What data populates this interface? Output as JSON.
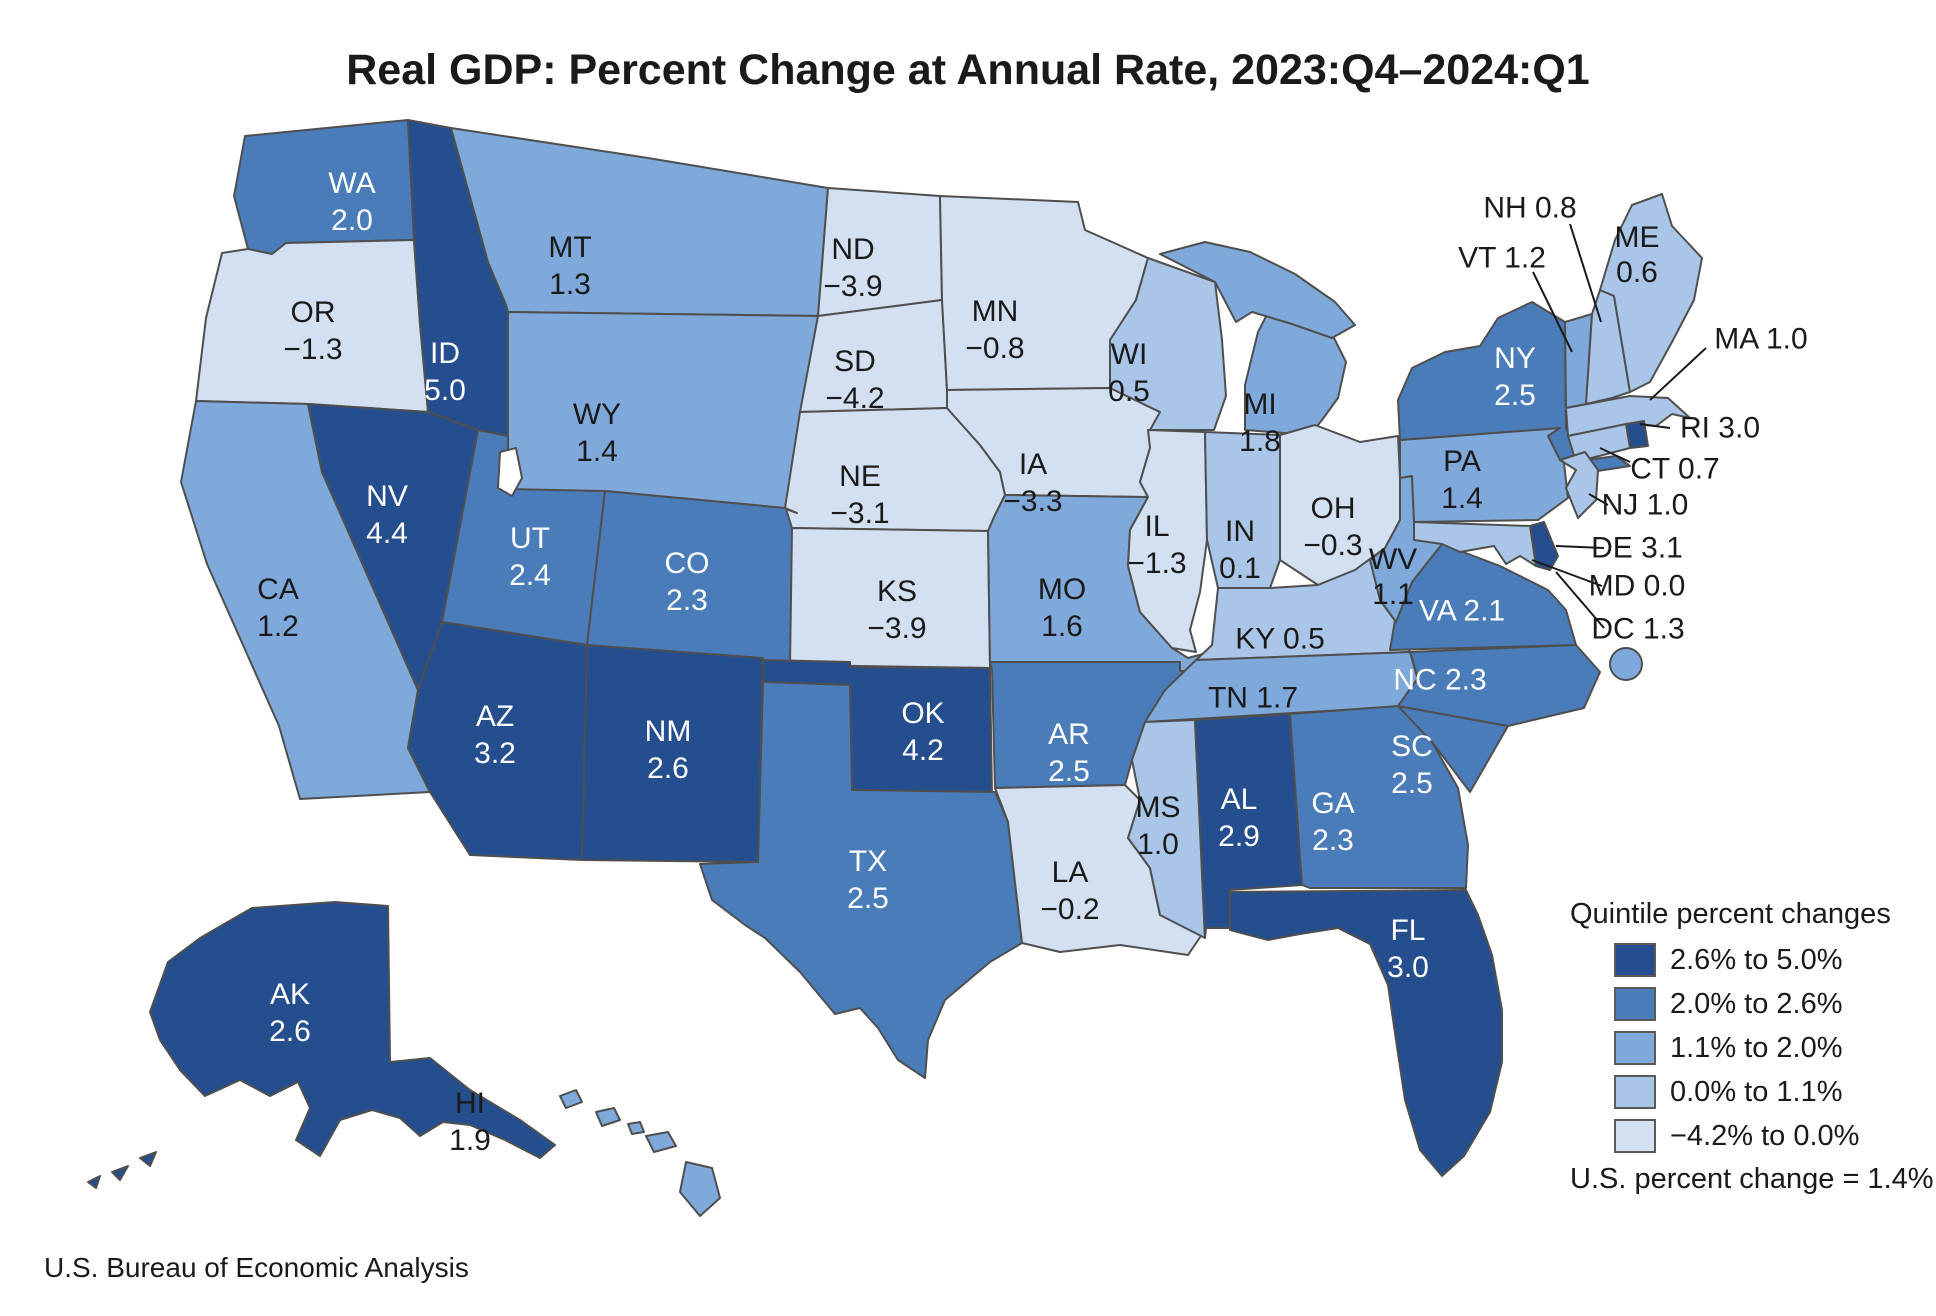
{
  "title": "Real GDP: Percent Change at Annual Rate, 2023:Q4–2024:Q1",
  "source": "U.S. Bureau of Economic Analysis",
  "legend": {
    "title": "Quintile percent changes",
    "note": "U.S. percent change = 1.4%",
    "classes": [
      {
        "label": "2.6% to 5.0%",
        "color": "#254E8F"
      },
      {
        "label": "2.0% to 2.6%",
        "color": "#4A7CBA"
      },
      {
        "label": "1.1% to 2.0%",
        "color": "#7FA8DB"
      },
      {
        "label": "0.0% to 1.1%",
        "color": "#A9C6E8"
      },
      {
        "label": "−4.2% to 0.0%",
        "color": "#D3E0F1"
      }
    ]
  },
  "map_style": {
    "border_color": "#4f4f4f",
    "label_dark": "#1a1a1a",
    "label_light": "#ffffff"
  },
  "states": [
    {
      "code": "WA",
      "value": "2.0",
      "quintile": 1
    },
    {
      "code": "OR",
      "value": "−1.3",
      "quintile": 4
    },
    {
      "code": "CA",
      "value": "1.2",
      "quintile": 2
    },
    {
      "code": "ID",
      "value": "5.0",
      "quintile": 0
    },
    {
      "code": "NV",
      "value": "4.4",
      "quintile": 0
    },
    {
      "code": "UT",
      "value": "2.4",
      "quintile": 1
    },
    {
      "code": "AZ",
      "value": "3.2",
      "quintile": 0
    },
    {
      "code": "MT",
      "value": "1.3",
      "quintile": 2
    },
    {
      "code": "WY",
      "value": "1.4",
      "quintile": 2
    },
    {
      "code": "CO",
      "value": "2.3",
      "quintile": 1
    },
    {
      "code": "NM",
      "value": "2.6",
      "quintile": 0
    },
    {
      "code": "ND",
      "value": "−3.9",
      "quintile": 4
    },
    {
      "code": "SD",
      "value": "−4.2",
      "quintile": 4
    },
    {
      "code": "NE",
      "value": "−3.1",
      "quintile": 4
    },
    {
      "code": "KS",
      "value": "−3.9",
      "quintile": 4
    },
    {
      "code": "OK",
      "value": "4.2",
      "quintile": 0
    },
    {
      "code": "TX",
      "value": "2.5",
      "quintile": 1
    },
    {
      "code": "MN",
      "value": "−0.8",
      "quintile": 4
    },
    {
      "code": "IA",
      "value": "−3.3",
      "quintile": 4
    },
    {
      "code": "MO",
      "value": "1.6",
      "quintile": 2
    },
    {
      "code": "AR",
      "value": "2.5",
      "quintile": 1
    },
    {
      "code": "LA",
      "value": "−0.2",
      "quintile": 4
    },
    {
      "code": "WI",
      "value": "0.5",
      "quintile": 3
    },
    {
      "code": "IL",
      "value": "−1.3",
      "quintile": 4
    },
    {
      "code": "IN",
      "value": "0.1",
      "quintile": 3
    },
    {
      "code": "MI",
      "value": "1.8",
      "quintile": 2
    },
    {
      "code": "OH",
      "value": "−0.3",
      "quintile": 4
    },
    {
      "code": "KY",
      "value": "0.5",
      "quintile": 3
    },
    {
      "code": "TN",
      "value": "1.7",
      "quintile": 2
    },
    {
      "code": "MS",
      "value": "1.0",
      "quintile": 3
    },
    {
      "code": "AL",
      "value": "2.9",
      "quintile": 0
    },
    {
      "code": "GA",
      "value": "2.3",
      "quintile": 1
    },
    {
      "code": "FL",
      "value": "3.0",
      "quintile": 0
    },
    {
      "code": "SC",
      "value": "2.5",
      "quintile": 1
    },
    {
      "code": "NC",
      "value": "2.3",
      "quintile": 1
    },
    {
      "code": "VA",
      "value": "2.1",
      "quintile": 1
    },
    {
      "code": "WV",
      "value": "1.1",
      "quintile": 2
    },
    {
      "code": "PA",
      "value": "1.4",
      "quintile": 2
    },
    {
      "code": "NY",
      "value": "2.5",
      "quintile": 1
    },
    {
      "code": "NJ",
      "value": "1.0",
      "quintile": 3
    },
    {
      "code": "DE",
      "value": "3.1",
      "quintile": 0
    },
    {
      "code": "MD",
      "value": "0.0",
      "quintile": 3
    },
    {
      "code": "DC",
      "value": "1.3",
      "quintile": 2
    },
    {
      "code": "CT",
      "value": "0.7",
      "quintile": 3
    },
    {
      "code": "RI",
      "value": "3.0",
      "quintile": 0
    },
    {
      "code": "MA",
      "value": "1.0",
      "quintile": 3
    },
    {
      "code": "VT",
      "value": "1.2",
      "quintile": 2
    },
    {
      "code": "NH",
      "value": "0.8",
      "quintile": 3
    },
    {
      "code": "ME",
      "value": "0.6",
      "quintile": 3
    },
    {
      "code": "AK",
      "value": "2.6",
      "quintile": 0
    },
    {
      "code": "HI",
      "value": "1.9",
      "quintile": 2
    }
  ],
  "chart_data": {
    "type": "choropleth",
    "title": "Real GDP: Percent Change at Annual Rate, 2023:Q4–2024:Q1",
    "unit": "percent change at annual rate",
    "us_percent_change": 1.4,
    "legend_position": "bottom-right",
    "quintile_bins": [
      "2.6% to 5.0%",
      "2.0% to 2.6%",
      "1.1% to 2.0%",
      "0.0% to 1.1%",
      "−4.2% to 0.0%"
    ],
    "categories": [
      "WA",
      "OR",
      "CA",
      "ID",
      "NV",
      "UT",
      "AZ",
      "MT",
      "WY",
      "CO",
      "NM",
      "ND",
      "SD",
      "NE",
      "KS",
      "OK",
      "TX",
      "MN",
      "IA",
      "MO",
      "AR",
      "LA",
      "WI",
      "IL",
      "IN",
      "MI",
      "OH",
      "KY",
      "TN",
      "MS",
      "AL",
      "GA",
      "FL",
      "SC",
      "NC",
      "VA",
      "WV",
      "PA",
      "NY",
      "NJ",
      "DE",
      "MD",
      "DC",
      "CT",
      "RI",
      "MA",
      "VT",
      "NH",
      "ME",
      "AK",
      "HI"
    ],
    "values": [
      2.0,
      -1.3,
      1.2,
      5.0,
      4.4,
      2.4,
      3.2,
      1.3,
      1.4,
      2.3,
      2.6,
      -3.9,
      -4.2,
      -3.1,
      -3.9,
      4.2,
      2.5,
      -0.8,
      -3.3,
      1.6,
      2.5,
      -0.2,
      0.5,
      -1.3,
      0.1,
      1.8,
      -0.3,
      0.5,
      1.7,
      1.0,
      2.9,
      2.3,
      3.0,
      2.5,
      2.3,
      2.1,
      1.1,
      1.4,
      2.5,
      1.0,
      3.1,
      0.0,
      1.3,
      0.7,
      3.0,
      1.0,
      1.2,
      0.8,
      0.6,
      2.6,
      1.9
    ]
  }
}
